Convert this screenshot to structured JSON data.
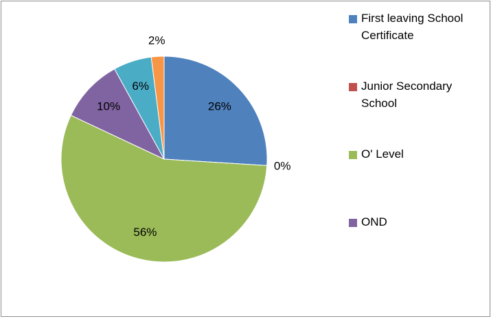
{
  "chart_data": {
    "type": "pie",
    "categories": [
      "First leaving School Certificate",
      "Junior Secondary School",
      "O' Level",
      "OND",
      null,
      null
    ],
    "values": [
      26,
      0,
      56,
      10,
      6,
      2
    ],
    "value_labels": [
      "26%",
      "0%",
      "56%",
      "10%",
      "6%",
      "2%"
    ],
    "colors": [
      "#4f81bd",
      "#c0504d",
      "#9bbb59",
      "#8064a2",
      "#4bacc6",
      "#f79646"
    ],
    "legend": "right"
  }
}
